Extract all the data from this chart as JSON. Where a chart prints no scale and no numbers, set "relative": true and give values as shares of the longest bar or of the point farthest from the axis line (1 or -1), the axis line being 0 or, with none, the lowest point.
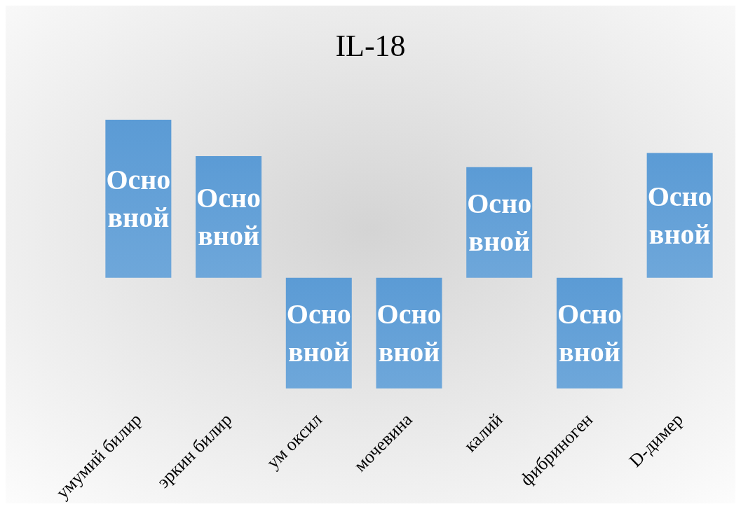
{
  "chart_data": {
    "type": "bar",
    "title": "IL-18",
    "relative": true,
    "categories": [
      "умумий билир",
      "эркин билир",
      "ум оксил",
      "мочевина",
      "калий",
      "фибриноген",
      "D-димер"
    ],
    "series": [
      {
        "name": "Основной",
        "color": "#5b9bd5",
        "values": [
          1,
          0.77,
          -0.7,
          -0.7,
          0.7,
          -0.7,
          0.79
        ]
      }
    ],
    "legend": false
  }
}
